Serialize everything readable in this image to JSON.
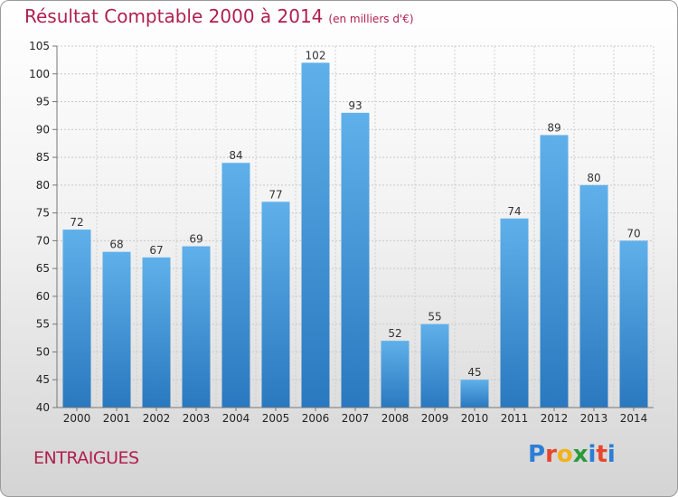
{
  "header": {
    "title": "Résultat Comptable 2000 à 2014",
    "subtitle": "(en milliers d'€)"
  },
  "footer": {
    "place": "ENTRAIGUES",
    "logo": "Proxiti"
  },
  "colors": {
    "bar_top": "#5fb0ea",
    "bar_bottom": "#2a78bf",
    "title": "#b0204f"
  },
  "chart_data": {
    "type": "bar",
    "title": "Résultat Comptable 2000 à 2014",
    "subtitle": "(en milliers d'€)",
    "categories": [
      "2000",
      "2001",
      "2002",
      "2003",
      "2004",
      "2005",
      "2006",
      "2007",
      "2008",
      "2009",
      "2010",
      "2011",
      "2012",
      "2013",
      "2014"
    ],
    "values": [
      72,
      68,
      67,
      69,
      84,
      77,
      102,
      93,
      52,
      55,
      45,
      74,
      89,
      80,
      70
    ],
    "ylim": [
      40,
      105
    ],
    "yticks": [
      40,
      45,
      50,
      55,
      60,
      65,
      70,
      75,
      80,
      85,
      90,
      95,
      100,
      105
    ],
    "grid": true,
    "data_labels": true
  }
}
